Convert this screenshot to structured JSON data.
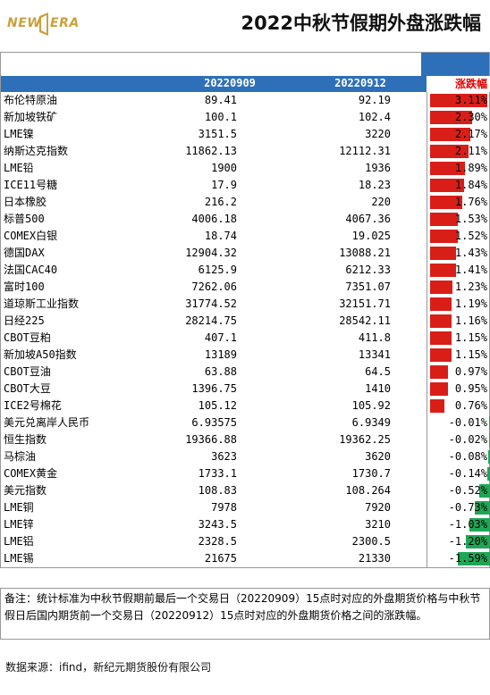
{
  "logo": {
    "left_text": "NEW",
    "right_text": "ERA"
  },
  "title": "2022中秋节假期外盘涨跌幅",
  "table": {
    "headers": {
      "date1": "20220909",
      "date2": "20220912",
      "change": "涨跌幅"
    },
    "rows": [
      {
        "name": "布伦特原油",
        "v1": "89.41",
        "v2": "92.19",
        "pct": "3.11%",
        "value": 3.11
      },
      {
        "name": "新加坡铁矿",
        "v1": "100.1",
        "v2": "102.4",
        "pct": "2.30%",
        "value": 2.3
      },
      {
        "name": "LME镍",
        "v1": "3151.5",
        "v2": "3220",
        "pct": "2.17%",
        "value": 2.17
      },
      {
        "name": "纳斯达克指数",
        "v1": "11862.13",
        "v2": "12112.31",
        "pct": "2.11%",
        "value": 2.11
      },
      {
        "name": "LME铅",
        "v1": "1900",
        "v2": "1936",
        "pct": "1.89%",
        "value": 1.89
      },
      {
        "name": "ICE11号糖",
        "v1": "17.9",
        "v2": "18.23",
        "pct": "1.84%",
        "value": 1.84
      },
      {
        "name": "日本橡胶",
        "v1": "216.2",
        "v2": "220",
        "pct": "1.76%",
        "value": 1.76
      },
      {
        "name": "标普500",
        "v1": "4006.18",
        "v2": "4067.36",
        "pct": "1.53%",
        "value": 1.53
      },
      {
        "name": "COMEX白银",
        "v1": "18.74",
        "v2": "19.025",
        "pct": "1.52%",
        "value": 1.52
      },
      {
        "name": "德国DAX",
        "v1": "12904.32",
        "v2": "13088.21",
        "pct": "1.43%",
        "value": 1.43
      },
      {
        "name": "法国CAC40",
        "v1": "6125.9",
        "v2": "6212.33",
        "pct": "1.41%",
        "value": 1.41
      },
      {
        "name": "富时100",
        "v1": "7262.06",
        "v2": "7351.07",
        "pct": "1.23%",
        "value": 1.23
      },
      {
        "name": "道琼斯工业指数",
        "v1": "31774.52",
        "v2": "32151.71",
        "pct": "1.19%",
        "value": 1.19
      },
      {
        "name": "日经225",
        "v1": "28214.75",
        "v2": "28542.11",
        "pct": "1.16%",
        "value": 1.16
      },
      {
        "name": "CBOT豆粕",
        "v1": "407.1",
        "v2": "411.8",
        "pct": "1.15%",
        "value": 1.15
      },
      {
        "name": "新加坡A50指数",
        "v1": "13189",
        "v2": "13341",
        "pct": "1.15%",
        "value": 1.15
      },
      {
        "name": "CBOT豆油",
        "v1": "63.88",
        "v2": "64.5",
        "pct": "0.97%",
        "value": 0.97
      },
      {
        "name": "CBOT大豆",
        "v1": "1396.75",
        "v2": "1410",
        "pct": "0.95%",
        "value": 0.95
      },
      {
        "name": "ICE2号棉花",
        "v1": "105.12",
        "v2": "105.92",
        "pct": "0.76%",
        "value": 0.76
      },
      {
        "name": "美元兑离岸人民币",
        "v1": "6.93575",
        "v2": "6.9349",
        "pct": "-0.01%",
        "value": -0.01
      },
      {
        "name": "恒生指数",
        "v1": "19366.88",
        "v2": "19362.25",
        "pct": "-0.02%",
        "value": -0.02
      },
      {
        "name": "马棕油",
        "v1": "3623",
        "v2": "3620",
        "pct": "-0.08%",
        "value": -0.08
      },
      {
        "name": "COMEX黄金",
        "v1": "1733.1",
        "v2": "1730.7",
        "pct": "-0.14%",
        "value": -0.14
      },
      {
        "name": "美元指数",
        "v1": "108.83",
        "v2": "108.264",
        "pct": "-0.52%",
        "value": -0.52
      },
      {
        "name": "LME铜",
        "v1": "7978",
        "v2": "7920",
        "pct": "-0.73%",
        "value": -0.73
      },
      {
        "name": "LME锌",
        "v1": "3243.5",
        "v2": "3210",
        "pct": "-1.03%",
        "value": -1.03
      },
      {
        "name": "LME铝",
        "v1": "2328.5",
        "v2": "2300.5",
        "pct": "-1.20%",
        "value": -1.2
      },
      {
        "name": "LME锡",
        "v1": "21675",
        "v2": "21330",
        "pct": "-1.59%",
        "value": -1.59
      }
    ]
  },
  "note": "备注：统计标准为中秋节假期前最后一个交易日（20220909）15点时对应的外盘期货价格与中秋节假日后国内期货前一个交易日（20220912）15点时对应的外盘期货价格之间的涨跌幅。",
  "source": "数据来源：ifind，新纪元期货股份有限公司",
  "colors": {
    "header_blue": "#2e6fb9",
    "up_red": "#d91e18",
    "down_green": "#1fa657",
    "logo_gold": "#c9a13c"
  }
}
